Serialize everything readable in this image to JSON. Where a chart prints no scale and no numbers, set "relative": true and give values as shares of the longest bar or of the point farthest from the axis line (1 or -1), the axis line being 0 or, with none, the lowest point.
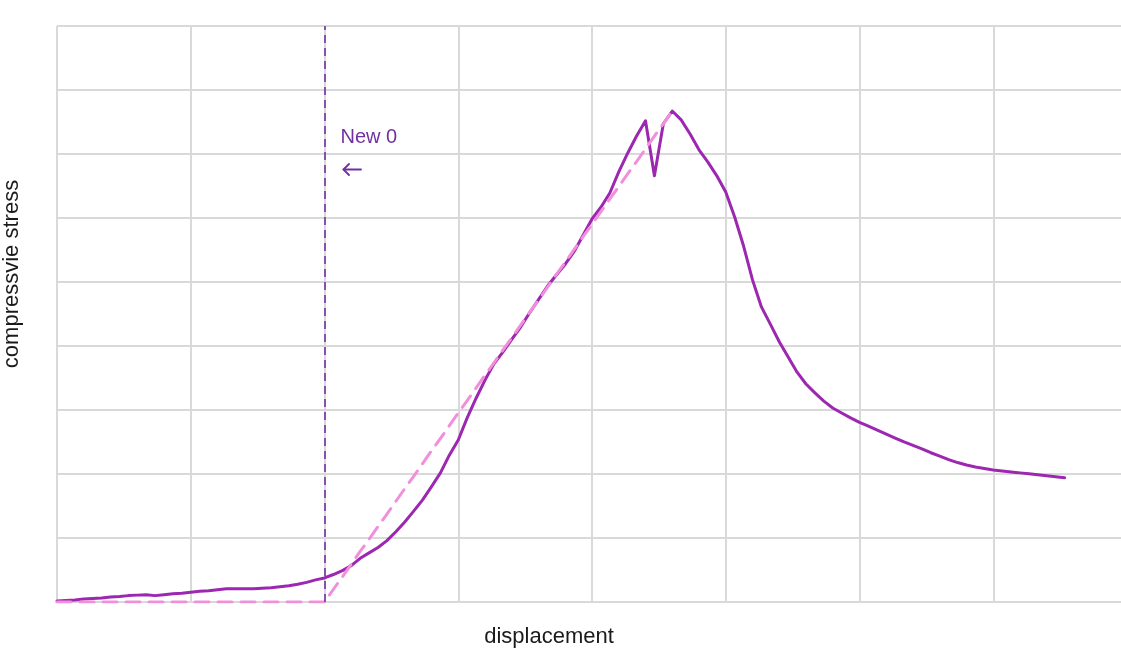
{
  "chart_data": {
    "type": "line",
    "relative": true,
    "xlabel": "displacement",
    "ylabel": "compressvie stress",
    "grid": true,
    "annotations": [
      "New 0"
    ],
    "categories": [
      null,
      null,
      null,
      null,
      null,
      null,
      null,
      null,
      null,
      null,
      null,
      null,
      null,
      null,
      null,
      null,
      null,
      null,
      null,
      null,
      null,
      null,
      null,
      null,
      null,
      null,
      null,
      null,
      null,
      null,
      null,
      null,
      null,
      null,
      null,
      null,
      null,
      null,
      null,
      null,
      null,
      null,
      null,
      null,
      null,
      null,
      null,
      null,
      null,
      null,
      null,
      null,
      null,
      null,
      null,
      null,
      null,
      null,
      null,
      null,
      null,
      null,
      null,
      null,
      null,
      null,
      null,
      null,
      null,
      null,
      null,
      null,
      null,
      null,
      null,
      null,
      null,
      null,
      null,
      null,
      null,
      null,
      null,
      null,
      null,
      null,
      null,
      null,
      null,
      null,
      null,
      null,
      null,
      null,
      null,
      null,
      null,
      null,
      null,
      null,
      null,
      null,
      null,
      null,
      null,
      null,
      null,
      null,
      null,
      null,
      null,
      null,
      null,
      null,
      null,
      null,
      null,
      null,
      null,
      null,
      null
    ],
    "series": [
      {
        "color": "#9c27b0",
        "line_style": "solid",
        "values": [
          0.002,
          0.003,
          0.004,
          0.006,
          0.007,
          0.008,
          0.01,
          0.011,
          0.013,
          0.014,
          0.015,
          0.013,
          0.015,
          0.017,
          0.018,
          0.02,
          0.022,
          0.023,
          0.025,
          0.027,
          0.027,
          0.027,
          0.027,
          0.028,
          0.029,
          0.031,
          0.033,
          0.036,
          0.04,
          0.045,
          0.049,
          0.056,
          0.064,
          0.074,
          0.089,
          0.1,
          0.111,
          0.125,
          0.143,
          0.163,
          0.185,
          0.208,
          0.235,
          0.263,
          0.299,
          0.33,
          0.375,
          0.415,
          0.452,
          0.485,
          0.509,
          0.535,
          0.56,
          0.589,
          0.616,
          0.643,
          0.666,
          0.688,
          0.714,
          0.747,
          0.78,
          0.804,
          0.833,
          0.876,
          0.914,
          0.949,
          0.98,
          0.868,
          0.974,
          1,
          0.982,
          0.953,
          0.921,
          0.896,
          0.868,
          0.835,
          0.784,
          0.725,
          0.656,
          0.601,
          0.566,
          0.53,
          0.499,
          0.468,
          0.444,
          0.426,
          0.409,
          0.395,
          0.385,
          0.375,
          0.366,
          0.358,
          0.35,
          0.342,
          0.334,
          0.326,
          0.319,
          0.312,
          0.304,
          0.297,
          0.29,
          0.284,
          0.279,
          0.275,
          0.272,
          0.269,
          0.267,
          0.265,
          0.263,
          0.261,
          0.259,
          0.257,
          0.255,
          0.253,
          null,
          null,
          null,
          null,
          null,
          null,
          null
        ]
      },
      {
        "color": "#f18fdb",
        "line_style": "dashed",
        "values": [
          0,
          0,
          0,
          0,
          0,
          0,
          0,
          0,
          0,
          0,
          0,
          0,
          0,
          0,
          0,
          0,
          0,
          0,
          0,
          0,
          0,
          0,
          0,
          0,
          0,
          0,
          0,
          0,
          0,
          0,
          0,
          0.026,
          0.051,
          0.077,
          0.103,
          0.128,
          0.154,
          0.179,
          0.205,
          0.231,
          0.256,
          0.282,
          0.308,
          0.333,
          0.359,
          0.385,
          0.41,
          0.436,
          0.462,
          0.487,
          0.513,
          0.538,
          0.564,
          0.59,
          0.615,
          0.641,
          0.667,
          0.692,
          0.718,
          0.744,
          0.769,
          0.795,
          0.821,
          0.846,
          0.872,
          0.897,
          0.923,
          0.949,
          0.974,
          1,
          null,
          null,
          null,
          null,
          null,
          null,
          null,
          null,
          null,
          null,
          null,
          null,
          null,
          null,
          null,
          null,
          null,
          null,
          null,
          null,
          null,
          null,
          null,
          null,
          null,
          null,
          null,
          null,
          null,
          null,
          null,
          null,
          null,
          null,
          null,
          null,
          null,
          null,
          null,
          null,
          null,
          null,
          null,
          null,
          null,
          null,
          null,
          null,
          null,
          null,
          null
        ]
      }
    ]
  }
}
